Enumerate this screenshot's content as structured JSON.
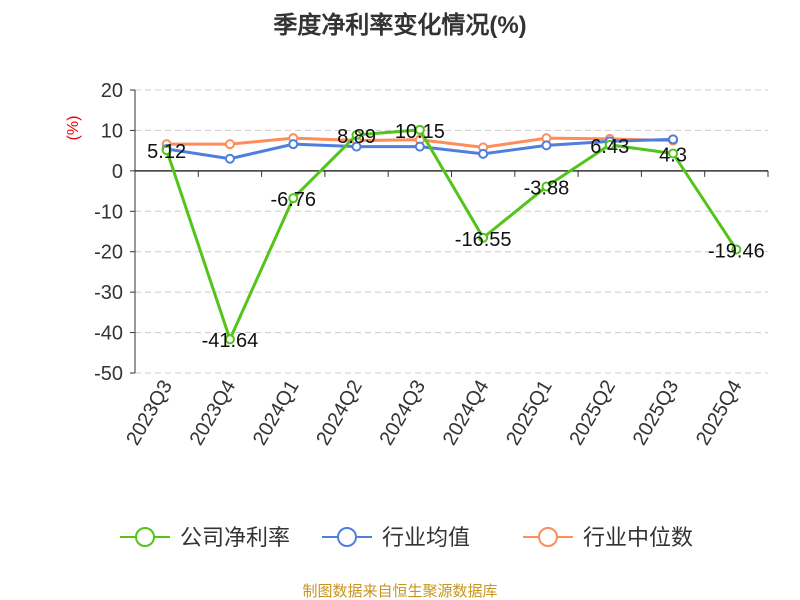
{
  "chart_data": {
    "type": "line",
    "title": "季度净利率变化情况(%)",
    "ylabel": "(%)",
    "xlabel": "",
    "ylim": [
      -50,
      20
    ],
    "yticks": [
      20,
      10,
      0,
      -10,
      -20,
      -30,
      -40,
      -50
    ],
    "grid": true,
    "legend_position": "bottom",
    "categories": [
      "2023Q3",
      "2023Q4",
      "2024Q1",
      "2024Q2",
      "2024Q3",
      "2024Q4",
      "2025Q1",
      "2025Q2",
      "2025Q3",
      "2025Q4"
    ],
    "series": [
      {
        "name": "公司净利率",
        "color": "#52c41a",
        "values": [
          5.12,
          -41.64,
          -6.76,
          8.89,
          10.15,
          -16.55,
          -3.88,
          6.43,
          4.3,
          -19.46
        ],
        "labels": true
      },
      {
        "name": "行业均值",
        "color": "#4e7fe0",
        "values": [
          5.4,
          3.0,
          6.6,
          6.0,
          6.0,
          4.2,
          6.3,
          7.3,
          7.8,
          null
        ],
        "labels": false
      },
      {
        "name": "行业中位数",
        "color": "#ff8c5a",
        "values": [
          6.6,
          6.6,
          8.1,
          7.5,
          7.7,
          5.8,
          8.1,
          7.9,
          7.5,
          null
        ],
        "labels": false
      }
    ]
  },
  "footer": {
    "source": "制图数据来自恒生聚源数据库"
  }
}
